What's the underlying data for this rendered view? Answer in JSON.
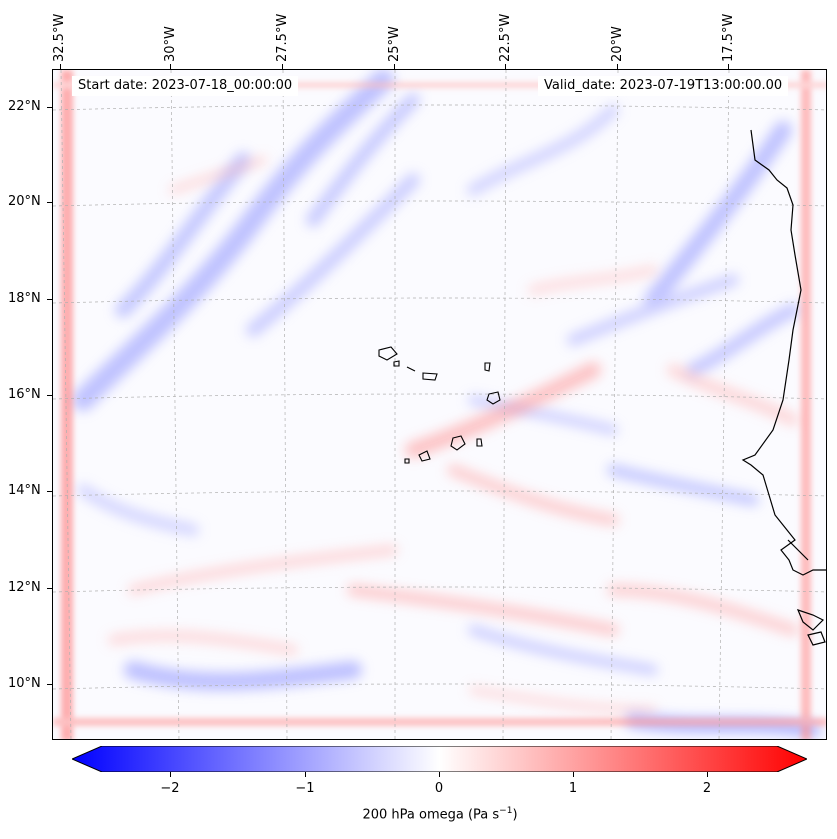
{
  "map": {
    "start_label": "Start date: 2023-07-18_00:00:00",
    "valid_label": "Valid_date: 2023-07-19T13:00:00.00",
    "lon_ticks": [
      "32.5°W",
      "30°W",
      "27.5°W",
      "25°W",
      "22.5°W",
      "20°W",
      "17.5°W"
    ],
    "lat_ticks": [
      "22°N",
      "20°N",
      "18°N",
      "16°N",
      "14°N",
      "12°N",
      "10°N"
    ],
    "extent": {
      "lon_min": -33.0,
      "lon_max": -15.6,
      "lat_min": 8.9,
      "lat_max": 22.8
    },
    "variable": "200 hPa omega",
    "colormap": "bwr",
    "colors": {
      "negative": "#0000ff",
      "zero": "#ffffff",
      "positive": "#ff0000",
      "coastline": "#000000",
      "grid": "#aaaaaa"
    }
  },
  "colorbar": {
    "ticks": [
      "−2",
      "−1",
      "0",
      "1",
      "2"
    ],
    "range": [
      -2.75,
      2.75
    ],
    "extend": "both",
    "label": "200 hPa omega (Pa s",
    "label_sup": "−1",
    "label_end": ")"
  }
}
